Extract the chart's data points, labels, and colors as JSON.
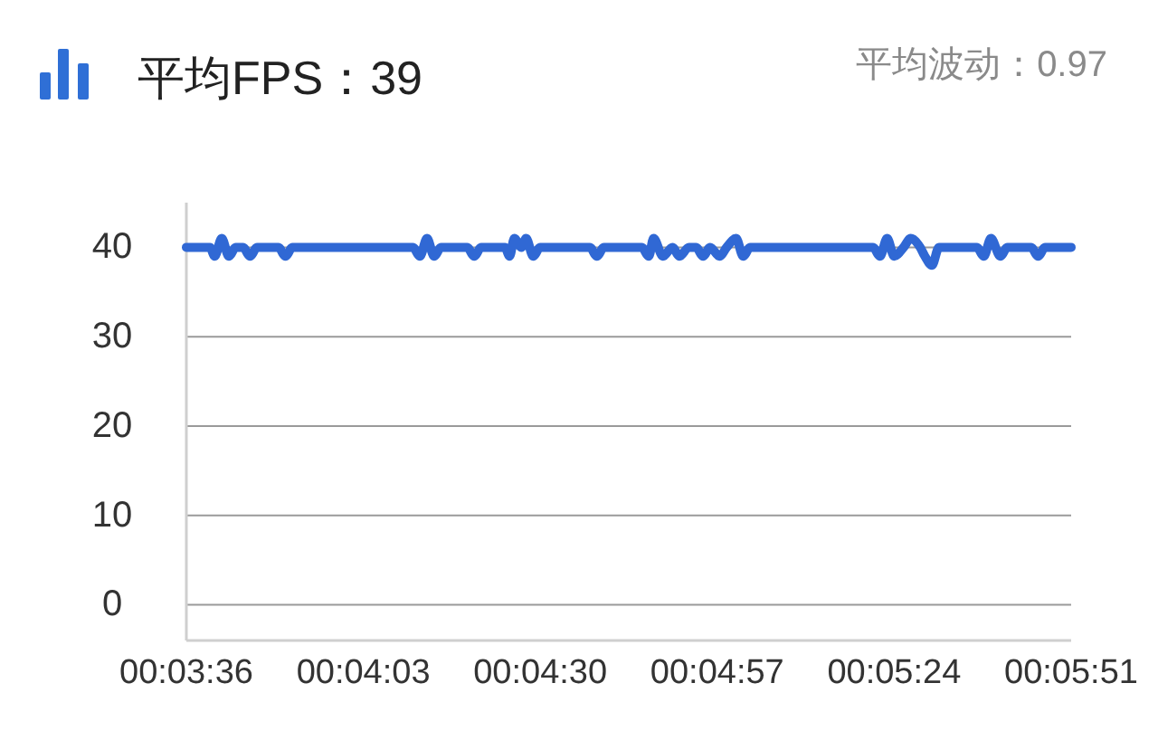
{
  "chart_data": {
    "type": "line",
    "title": "平均FPS：39",
    "annotations": [
      "平均波动：0.97"
    ],
    "x": [
      0.06,
      0.061,
      0.0612,
      0.0615,
      0.0618,
      0.0621,
      0.0624,
      0.0627,
      0.063,
      0.0639,
      0.0642,
      0.0645,
      0.0696,
      0.0699,
      0.0702,
      0.0705,
      0.0708,
      0.0719,
      0.0722,
      0.0725,
      0.0735,
      0.0737,
      0.0739,
      0.0742,
      0.0744,
      0.0747,
      0.075,
      0.0771,
      0.0774,
      0.0777,
      0.0793,
      0.0796,
      0.0798,
      0.0802,
      0.0806,
      0.0809,
      0.0813,
      0.0816,
      0.0819,
      0.0822,
      0.0826,
      0.0829,
      0.0833,
      0.0836,
      0.0839,
      0.0891,
      0.0894,
      0.0897,
      0.09,
      0.0904,
      0.0907,
      0.0911,
      0.0913,
      0.0916,
      0.0919,
      0.0935,
      0.0938,
      0.0941,
      0.0945,
      0.0948,
      0.0958,
      0.0961,
      0.0964,
      0.0975
    ],
    "series": [
      {
        "color": "#3068d4",
        "values": [
          40,
          40,
          39,
          41,
          39,
          40,
          40,
          39,
          40,
          40,
          39,
          40,
          40,
          39,
          41,
          39,
          40,
          40,
          39,
          40,
          40,
          39,
          41,
          40,
          41,
          39,
          40,
          40,
          39,
          40,
          40,
          39,
          41,
          39,
          40,
          39,
          40,
          40,
          39,
          40,
          39,
          40,
          41,
          39,
          40,
          40,
          39,
          41,
          39,
          40,
          41,
          40,
          39,
          38,
          40,
          40,
          39,
          41,
          39,
          40,
          40,
          39,
          40,
          40
        ]
      }
    ],
    "xlim": [
      0.06,
      0.0975
    ],
    "xticks": [
      {
        "value": 0.06,
        "label": "00:03:36"
      },
      {
        "value": 0.0675,
        "label": "00:04:03"
      },
      {
        "value": 0.075,
        "label": "00:04:30"
      },
      {
        "value": 0.0825,
        "label": "00:04:57"
      },
      {
        "value": 0.09,
        "label": "00:05:24"
      },
      {
        "value": 0.0975,
        "label": "00:05:51"
      }
    ],
    "ylim": [
      -4,
      45
    ],
    "yticks": [
      0,
      10,
      20,
      30,
      40
    ],
    "grid": "y",
    "line_style": "solid"
  }
}
